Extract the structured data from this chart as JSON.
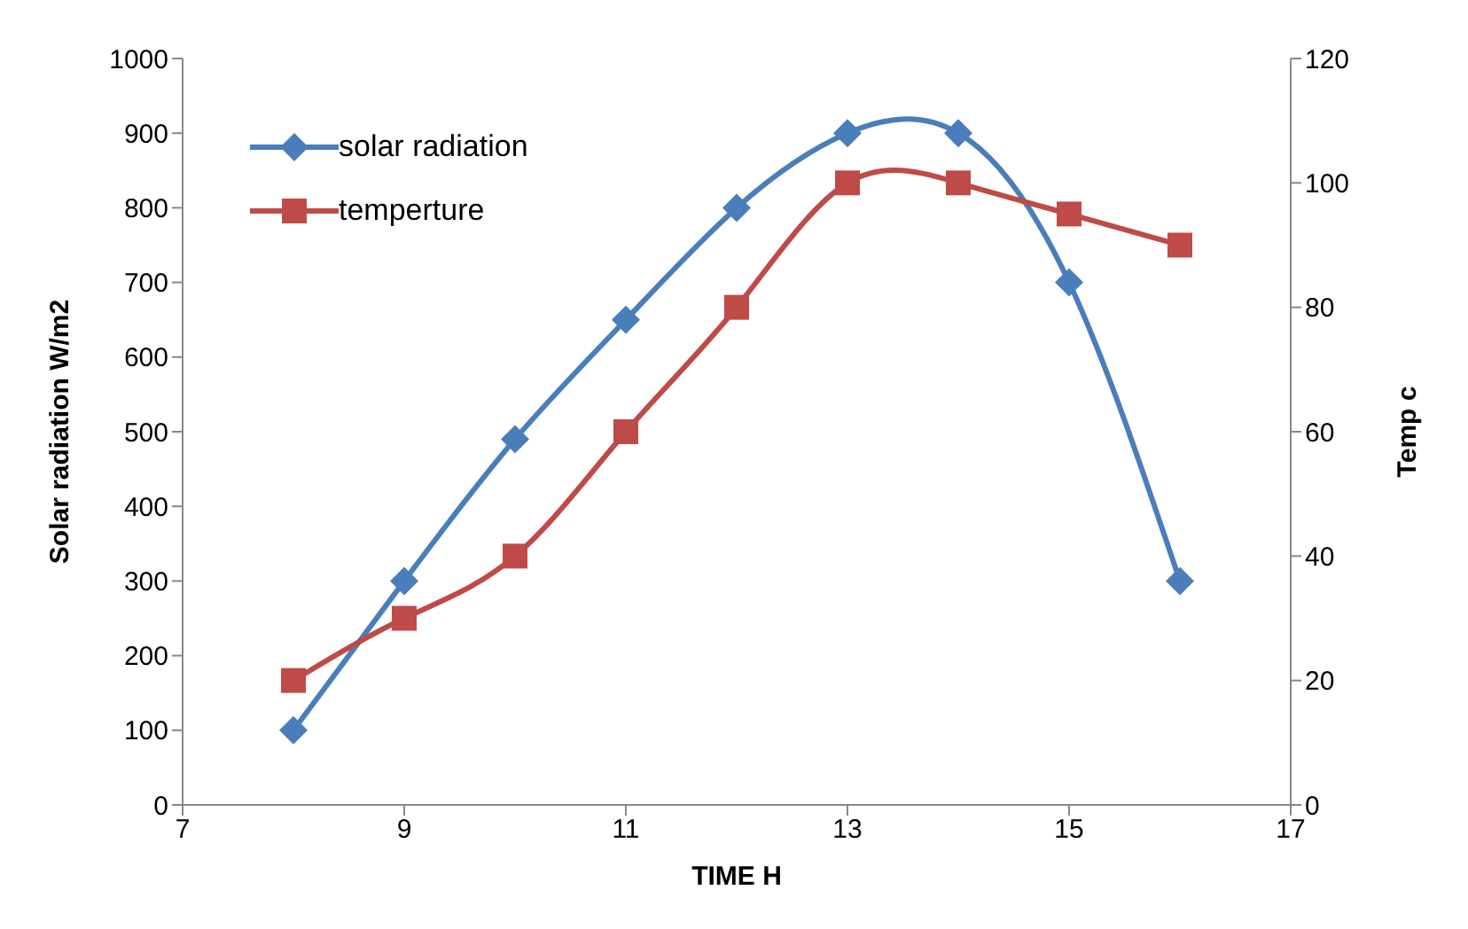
{
  "chart_data": {
    "type": "line",
    "xlabel": "TIME   H",
    "ylabel": "Solar radiation W/m2",
    "y2label": "Temp   c",
    "x": [
      8,
      9,
      10,
      11,
      12,
      13,
      14,
      15,
      16
    ],
    "series": [
      {
        "name": "solar radiation",
        "color": "#4a7ebb",
        "marker": "diamond",
        "values": [
          100,
          300,
          490,
          650,
          800,
          900,
          900,
          700,
          300
        ]
      },
      {
        "name": "temperture",
        "color": "#be4b48",
        "marker": "square",
        "axis": "y2",
        "values": [
          20,
          30,
          40,
          60,
          80,
          100,
          100,
          95,
          90
        ]
      }
    ],
    "xlim": [
      7,
      17
    ],
    "xticks": [
      7,
      9,
      11,
      13,
      15,
      17
    ],
    "ylim": [
      0,
      1000
    ],
    "yticks": [
      0,
      100,
      200,
      300,
      400,
      500,
      600,
      700,
      800,
      900,
      1000
    ],
    "y2lim": [
      0,
      120
    ],
    "y2ticks": [
      0,
      20,
      40,
      60,
      80,
      100,
      120
    ],
    "grid": false,
    "legend": "top left"
  }
}
